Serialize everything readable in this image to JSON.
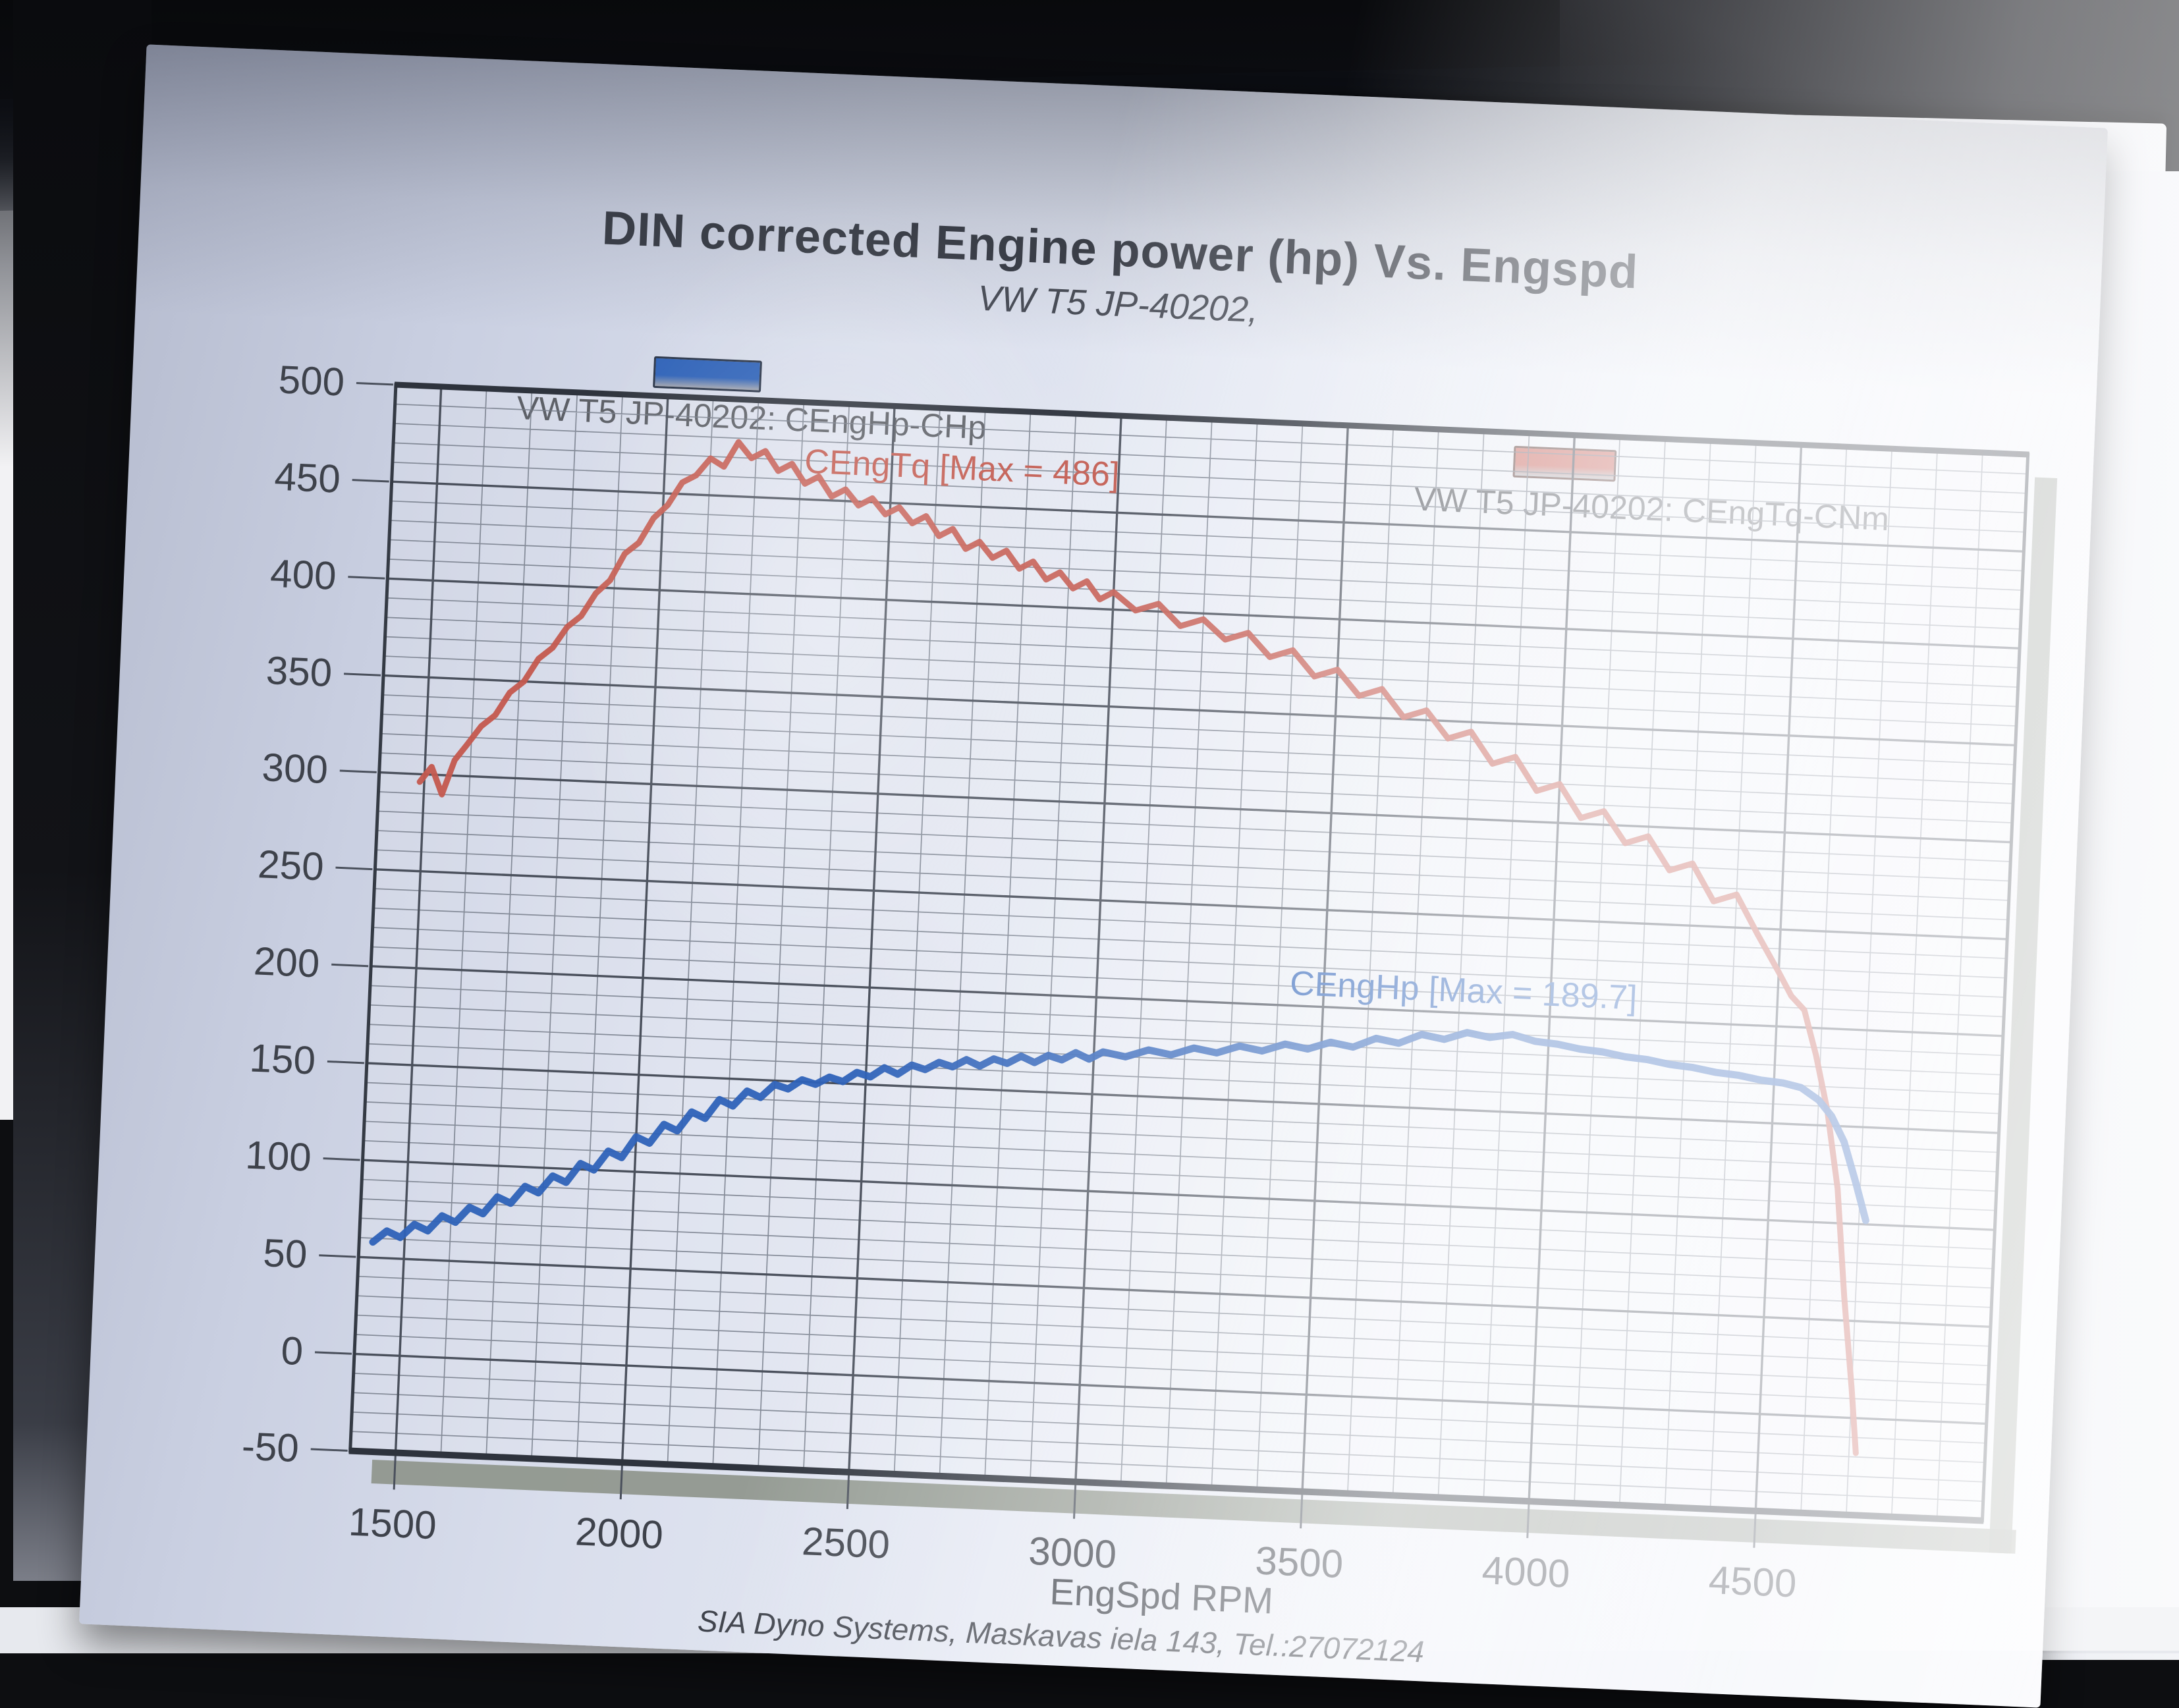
{
  "page": {
    "title": "DIN corrected Engine power (hp) Vs. Engspd",
    "subtitle": "VW T5 JP-40202,",
    "xlabel": "EngSpd RPM",
    "footer": "SIA Dyno Systems, Maskavas iela 143, Tel.:27072124"
  },
  "legend": {
    "power_label": "VW T5 JP-40202: CEngHp-CHp",
    "torque_label": "VW T5 JP-40202: CEngTq-CNm",
    "power_color": "#3f6dbd",
    "torque_color": "#c05a50"
  },
  "annotations": {
    "torque_max_label": "CEngTq [Max = 486]",
    "power_max_label": "CEngHp [Max = 189.7]"
  },
  "chart_data": {
    "type": "line",
    "title": "DIN corrected Engine power (hp) Vs. Engspd",
    "subtitle": "VW T5 JP-40202,",
    "xlabel": "EngSpd RPM",
    "ylabel": "",
    "xlim": [
      1400,
      5000
    ],
    "ylim": [
      -50,
      500
    ],
    "x_ticks": [
      1500,
      2000,
      2500,
      3000,
      3500,
      4000,
      4500
    ],
    "y_ticks": [
      -50,
      0,
      50,
      100,
      150,
      200,
      250,
      300,
      350,
      400,
      450,
      500
    ],
    "x_minor_step": 100,
    "y_minor_step": 10,
    "grid": true,
    "legend_position": "top",
    "series": [
      {
        "name": "VW T5 JP-40202: CEngTq-CNm",
        "short_name": "CEngTq",
        "unit": "CNm",
        "color": "#c4584e",
        "max_label_value": 486,
        "points": [
          [
            1490,
            296
          ],
          [
            1515,
            304
          ],
          [
            1540,
            290
          ],
          [
            1565,
            308
          ],
          [
            1590,
            316
          ],
          [
            1620,
            326
          ],
          [
            1650,
            332
          ],
          [
            1680,
            344
          ],
          [
            1710,
            350
          ],
          [
            1740,
            362
          ],
          [
            1770,
            368
          ],
          [
            1800,
            379
          ],
          [
            1830,
            385
          ],
          [
            1860,
            397
          ],
          [
            1890,
            404
          ],
          [
            1920,
            418
          ],
          [
            1950,
            424
          ],
          [
            1980,
            437
          ],
          [
            2010,
            444
          ],
          [
            2040,
            456
          ],
          [
            2070,
            460
          ],
          [
            2100,
            469
          ],
          [
            2130,
            465
          ],
          [
            2160,
            478
          ],
          [
            2190,
            470
          ],
          [
            2220,
            474
          ],
          [
            2250,
            464
          ],
          [
            2280,
            468
          ],
          [
            2310,
            458
          ],
          [
            2340,
            462
          ],
          [
            2370,
            452
          ],
          [
            2400,
            456
          ],
          [
            2430,
            448
          ],
          [
            2460,
            452
          ],
          [
            2490,
            444
          ],
          [
            2520,
            448
          ],
          [
            2550,
            440
          ],
          [
            2580,
            444
          ],
          [
            2610,
            434
          ],
          [
            2640,
            438
          ],
          [
            2670,
            428
          ],
          [
            2700,
            432
          ],
          [
            2730,
            424
          ],
          [
            2760,
            428
          ],
          [
            2790,
            419
          ],
          [
            2820,
            423
          ],
          [
            2850,
            414
          ],
          [
            2880,
            418
          ],
          [
            2910,
            410
          ],
          [
            2940,
            414
          ],
          [
            2970,
            405
          ],
          [
            3000,
            409
          ],
          [
            3050,
            400
          ],
          [
            3100,
            404
          ],
          [
            3150,
            393
          ],
          [
            3200,
            397
          ],
          [
            3250,
            387
          ],
          [
            3300,
            391
          ],
          [
            3350,
            379
          ],
          [
            3400,
            383
          ],
          [
            3450,
            370
          ],
          [
            3500,
            374
          ],
          [
            3550,
            361
          ],
          [
            3600,
            365
          ],
          [
            3650,
            351
          ],
          [
            3700,
            355
          ],
          [
            3750,
            341
          ],
          [
            3800,
            345
          ],
          [
            3850,
            329
          ],
          [
            3900,
            333
          ],
          [
            3950,
            316
          ],
          [
            4000,
            320
          ],
          [
            4050,
            303
          ],
          [
            4100,
            307
          ],
          [
            4150,
            291
          ],
          [
            4200,
            295
          ],
          [
            4250,
            278
          ],
          [
            4300,
            282
          ],
          [
            4350,
            263
          ],
          [
            4400,
            267
          ],
          [
            4450,
            247
          ],
          [
            4500,
            228
          ],
          [
            4530,
            216
          ],
          [
            4560,
            209
          ],
          [
            4590,
            186
          ],
          [
            4620,
            158
          ],
          [
            4650,
            118
          ],
          [
            4675,
            62
          ],
          [
            4700,
            15
          ],
          [
            4715,
            -18
          ]
        ]
      },
      {
        "name": "VW T5 JP-40202: CEngHp-CHp",
        "short_name": "CEngHp",
        "unit": "CHp",
        "color": "#2e62b8",
        "max_label_value": 189.7,
        "points": [
          [
            1430,
            58
          ],
          [
            1460,
            64
          ],
          [
            1490,
            61
          ],
          [
            1520,
            68
          ],
          [
            1550,
            65
          ],
          [
            1580,
            73
          ],
          [
            1610,
            70
          ],
          [
            1640,
            78
          ],
          [
            1670,
            75
          ],
          [
            1700,
            84
          ],
          [
            1730,
            81
          ],
          [
            1760,
            90
          ],
          [
            1790,
            87
          ],
          [
            1820,
            96
          ],
          [
            1850,
            93
          ],
          [
            1880,
            103
          ],
          [
            1910,
            100
          ],
          [
            1940,
            110
          ],
          [
            1970,
            107
          ],
          [
            2000,
            118
          ],
          [
            2030,
            115
          ],
          [
            2060,
            125
          ],
          [
            2090,
            122
          ],
          [
            2120,
            132
          ],
          [
            2150,
            129
          ],
          [
            2180,
            139
          ],
          [
            2210,
            136
          ],
          [
            2240,
            144
          ],
          [
            2270,
            141
          ],
          [
            2300,
            148
          ],
          [
            2330,
            146
          ],
          [
            2360,
            151
          ],
          [
            2390,
            149
          ],
          [
            2420,
            153
          ],
          [
            2450,
            151
          ],
          [
            2480,
            156
          ],
          [
            2510,
            154
          ],
          [
            2540,
            159
          ],
          [
            2570,
            156
          ],
          [
            2600,
            161
          ],
          [
            2630,
            159
          ],
          [
            2660,
            163
          ],
          [
            2690,
            161
          ],
          [
            2720,
            165
          ],
          [
            2750,
            162
          ],
          [
            2780,
            166
          ],
          [
            2810,
            164
          ],
          [
            2840,
            168
          ],
          [
            2870,
            165
          ],
          [
            2900,
            169
          ],
          [
            2930,
            167
          ],
          [
            2960,
            171
          ],
          [
            2990,
            168
          ],
          [
            3020,
            172
          ],
          [
            3070,
            170
          ],
          [
            3120,
            174
          ],
          [
            3170,
            172
          ],
          [
            3220,
            176
          ],
          [
            3270,
            174
          ],
          [
            3320,
            178
          ],
          [
            3370,
            176
          ],
          [
            3420,
            180
          ],
          [
            3470,
            178
          ],
          [
            3520,
            182
          ],
          [
            3570,
            180
          ],
          [
            3620,
            185
          ],
          [
            3670,
            183
          ],
          [
            3720,
            188
          ],
          [
            3770,
            186
          ],
          [
            3820,
            190
          ],
          [
            3870,
            188
          ],
          [
            3920,
            190
          ],
          [
            3970,
            187
          ],
          [
            4020,
            186
          ],
          [
            4070,
            184
          ],
          [
            4120,
            183
          ],
          [
            4170,
            181
          ],
          [
            4220,
            180
          ],
          [
            4270,
            178
          ],
          [
            4320,
            177
          ],
          [
            4370,
            175
          ],
          [
            4420,
            174
          ],
          [
            4470,
            172
          ],
          [
            4520,
            171
          ],
          [
            4560,
            169
          ],
          [
            4600,
            163
          ],
          [
            4630,
            155
          ],
          [
            4660,
            142
          ],
          [
            4690,
            121
          ],
          [
            4715,
            102
          ]
        ]
      }
    ]
  }
}
